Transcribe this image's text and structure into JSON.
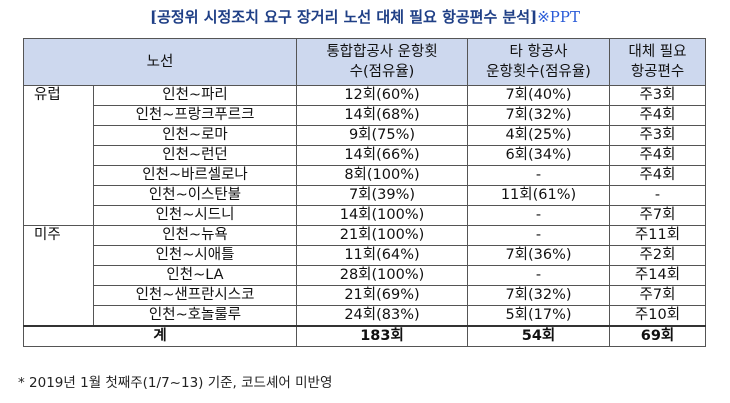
{
  "title": {
    "main": "[공정위 시정조치 요구 장거리 노선 대체 필요 항공편수 분석]",
    "source": "※PPT"
  },
  "header": {
    "route": "노선",
    "merged": [
      "통합합공사 운항횟",
      "수(점유율)"
    ],
    "other": [
      "타 항공사",
      "운항횟수(점유율)"
    ],
    "needed": [
      "대체 필요",
      "항공편수"
    ]
  },
  "rows": [
    {
      "region": "유럽",
      "route": "인천~파리",
      "merged": "12회(60%)",
      "other": "7회(40%)",
      "needed": "주3회"
    },
    {
      "region": "",
      "route": "인천~프랑크푸르크",
      "merged": "14회(68%)",
      "other": "7회(32%)",
      "needed": "주4회"
    },
    {
      "region": "",
      "route": "인천~로마",
      "merged": "9회(75%)",
      "other": "4회(25%)",
      "needed": "주3회"
    },
    {
      "region": "",
      "route": "인천~런던",
      "merged": "14회(66%)",
      "other": "6회(34%)",
      "needed": "주4회"
    },
    {
      "region": "",
      "route": "인천~바르셀로나",
      "merged": "8회(100%)",
      "other": "-",
      "needed": "주4회"
    },
    {
      "region": "",
      "route": "인천~이스탄불",
      "merged": "7회(39%)",
      "other": "11회(61%)",
      "needed": "-"
    },
    {
      "region": "",
      "route": "인천~시드니",
      "merged": "14회(100%)",
      "other": "-",
      "needed": "주7회"
    },
    {
      "region": "미주",
      "route": "인천~뉴욕",
      "merged": "21회(100%)",
      "other": "-",
      "needed": "주11회"
    },
    {
      "region": "",
      "route": "인천~시애틀",
      "merged": "11회(64%)",
      "other": "7회(36%)",
      "needed": "주2회"
    },
    {
      "region": "",
      "route": "인천~LA",
      "merged": "28회(100%)",
      "other": "-",
      "needed": "주14회"
    },
    {
      "region": "",
      "route": "인천~샌프란시스코",
      "merged": "21회(69%)",
      "other": "7회(32%)",
      "needed": "주7회"
    },
    {
      "region": "",
      "route": "인천~호놀룰루",
      "merged": "24회(83%)",
      "other": "5회(17%)",
      "needed": "주10회"
    }
  ],
  "total": {
    "label": "계",
    "merged": "183회",
    "other": "54회",
    "needed": "69회"
  },
  "footnote": "* 2019년 1월 첫째주(1/7~13) 기준, 코드셰어 미반영"
}
